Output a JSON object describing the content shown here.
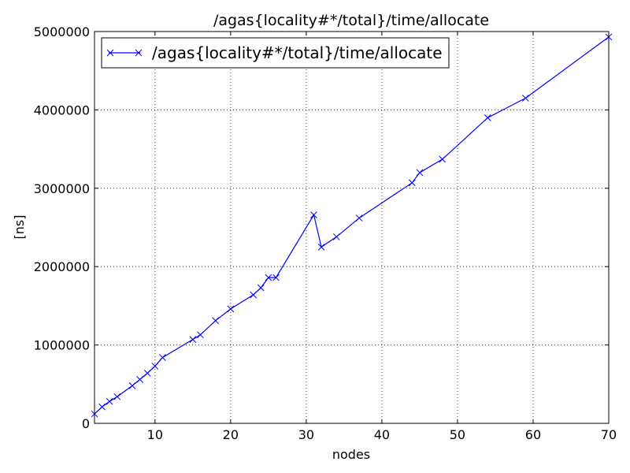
{
  "chart_data": {
    "type": "line",
    "title": "/agas{locality#*/total}/time/allocate",
    "xlabel": "nodes",
    "ylabel": "[ns]",
    "xlim": [
      2,
      70
    ],
    "ylim": [
      0,
      5000000
    ],
    "xticks": [
      10,
      20,
      30,
      40,
      50,
      60,
      70
    ],
    "yticks": [
      0,
      1000000,
      2000000,
      3000000,
      4000000,
      5000000
    ],
    "xtick_labels": [
      "10",
      "20",
      "30",
      "40",
      "50",
      "60",
      "70"
    ],
    "ytick_labels": [
      "0",
      "1000000",
      "2000000",
      "3000000",
      "4000000",
      "5000000"
    ],
    "grid": true,
    "legend_position": "top-left",
    "series": [
      {
        "name": "/agas{locality#*/total}/time/allocate",
        "color": "#0000ff",
        "marker": "x",
        "x": [
          2,
          3,
          4,
          5,
          7,
          8,
          9,
          10,
          11,
          15,
          16,
          18,
          20,
          23,
          24,
          25,
          26,
          31,
          32,
          34,
          37,
          44,
          45,
          48,
          54,
          59,
          70
        ],
        "y": [
          120000,
          210000,
          280000,
          340000,
          480000,
          560000,
          640000,
          730000,
          840000,
          1070000,
          1130000,
          1310000,
          1460000,
          1640000,
          1730000,
          1860000,
          1860000,
          2660000,
          2250000,
          2380000,
          2620000,
          3070000,
          3200000,
          3370000,
          3900000,
          4150000,
          4930000
        ]
      }
    ]
  }
}
